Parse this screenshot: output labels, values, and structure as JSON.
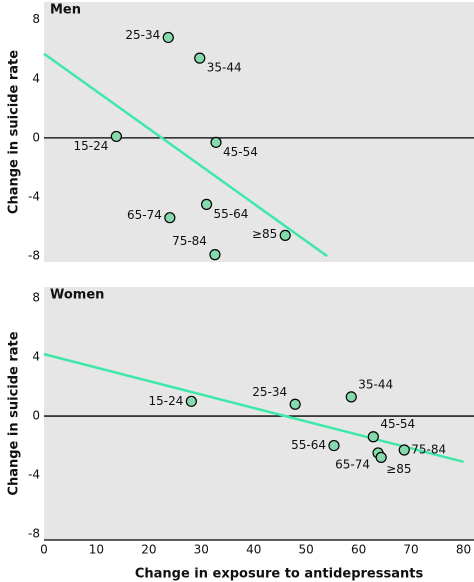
{
  "chart_data": [
    {
      "type": "scatter",
      "title": "Men",
      "y_label": "Change in suicide rate",
      "labels": [
        "25-34",
        "35-44",
        "15-24",
        "45-54",
        "65-74",
        "55-64",
        "75-84",
        "≥85"
      ],
      "x": [
        23.7,
        29.7,
        13.8,
        32.8,
        24.0,
        31.0,
        32.6,
        46.0
      ],
      "values": [
        6.8,
        5.4,
        0.1,
        -0.3,
        -5.4,
        -4.5,
        -7.9,
        -6.6
      ],
      "color": "#86d9ad",
      "trend": {
        "x": [
          0,
          54
        ],
        "values": [
          5.7,
          -8
        ],
        "color": "#3de8a8"
      },
      "xlim": [
        0,
        82
      ],
      "ylim": [
        -8.4,
        9.2
      ],
      "yticks": [
        8,
        4,
        0,
        -4,
        -8
      ]
    },
    {
      "type": "scatter",
      "title": "Women",
      "y_label": "Change in suicide rate",
      "x_label": "Change in exposure to antidepressants",
      "labels": [
        "15-24",
        "25-34",
        "35-44",
        "45-54",
        "55-64",
        "65-74",
        "≥85",
        "75-84"
      ],
      "x": [
        28.1,
        47.9,
        58.6,
        62.8,
        55.3,
        63.7,
        64.3,
        68.7
      ],
      "values": [
        1.0,
        0.8,
        1.3,
        -1.4,
        -2.0,
        -2.5,
        -2.8,
        -2.3
      ],
      "color": "#86d9ad",
      "trend": {
        "x": [
          0,
          80
        ],
        "values": [
          4.2,
          -3.1
        ],
        "color": "#3de8a8"
      },
      "xlim": [
        0,
        82
      ],
      "ylim": [
        -8.4,
        8.75
      ],
      "yticks": [
        8,
        4,
        0,
        -4,
        -8
      ],
      "xticks": [
        0,
        10,
        20,
        30,
        40,
        50,
        60,
        70,
        80
      ]
    }
  ]
}
